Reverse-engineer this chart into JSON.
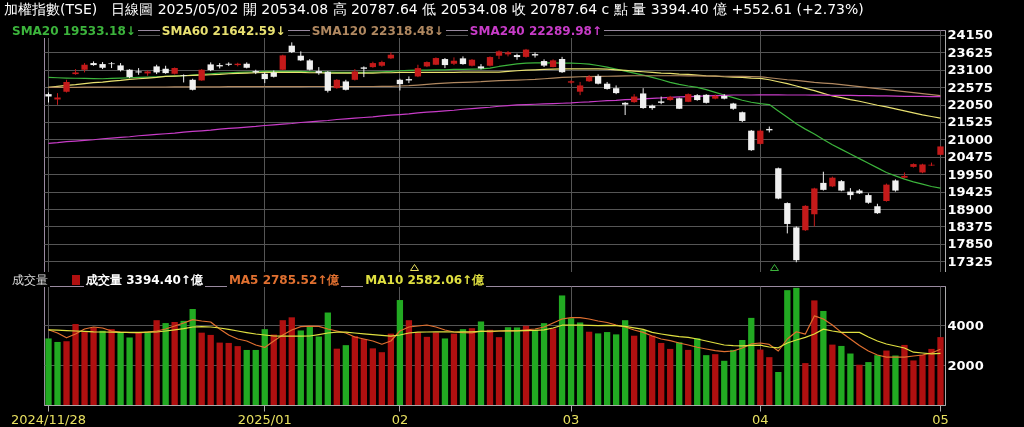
{
  "chart_data": [
    {
      "type": "candlestick",
      "title": "加權指數(TSE)",
      "subtitle": "日線圖  2025/05/02  開 20534.08  高 20787.64  低 20534.08  收 20787.64  c 點  量 3394.40 億  +552.61 (+2.73%)",
      "categories": [
        "2024/11/28",
        null,
        null,
        null,
        null,
        null,
        null,
        null,
        null,
        null,
        null,
        null,
        null,
        null,
        null,
        null,
        null,
        null,
        null,
        null,
        null,
        null,
        null,
        null,
        "2025/01",
        null,
        null,
        null,
        null,
        null,
        null,
        null,
        null,
        null,
        null,
        null,
        null,
        null,
        null,
        "02",
        null,
        null,
        null,
        null,
        null,
        null,
        null,
        null,
        null,
        null,
        null,
        null,
        null,
        null,
        null,
        null,
        null,
        null,
        "03",
        null,
        null,
        null,
        null,
        null,
        null,
        null,
        null,
        null,
        null,
        null,
        null,
        null,
        null,
        null,
        null,
        null,
        null,
        null,
        null,
        "04",
        null,
        null,
        null,
        null,
        null,
        null,
        null,
        null,
        null,
        null,
        null,
        null,
        null,
        null,
        null,
        null,
        null,
        null,
        null,
        "05"
      ],
      "ohlc": [
        [
          22365,
          22415,
          22113,
          22294
        ],
        [
          22204,
          22395,
          22043,
          22264
        ],
        [
          22436,
          22798,
          22415,
          22728
        ],
        [
          22970,
          23121,
          22950,
          23020
        ],
        [
          23101,
          23302,
          23020,
          23252
        ],
        [
          23302,
          23353,
          23222,
          23242
        ],
        [
          23272,
          23333,
          23121,
          23161
        ],
        [
          23292,
          23333,
          23151,
          23272
        ],
        [
          23232,
          23302,
          23050,
          23091
        ],
        [
          23101,
          23121,
          22849,
          22879
        ],
        [
          23050,
          23151,
          22950,
          23020
        ],
        [
          22990,
          23081,
          22919,
          23050
        ],
        [
          23202,
          23252,
          22970,
          23020
        ],
        [
          23131,
          23222,
          22980,
          23000
        ],
        [
          22980,
          23171,
          22960,
          23151
        ],
        [
          22940,
          22960,
          22718,
          22919
        ],
        [
          22798,
          22829,
          22476,
          22496
        ],
        [
          22778,
          23121,
          22768,
          23101
        ],
        [
          23262,
          23323,
          23060,
          23091
        ],
        [
          23242,
          23302,
          23141,
          23202
        ],
        [
          23282,
          23323,
          23212,
          23252
        ],
        [
          23242,
          23313,
          23202,
          23282
        ],
        [
          23282,
          23323,
          23141,
          23161
        ],
        [
          23060,
          23101,
          22970,
          23020
        ],
        [
          22980,
          23020,
          22698,
          22819
        ],
        [
          23020,
          23081,
          22869,
          22889
        ],
        [
          23101,
          23554,
          23091,
          23534
        ],
        [
          23827,
          23927,
          23605,
          23635
        ],
        [
          23524,
          23655,
          23363,
          23383
        ],
        [
          23383,
          23423,
          23081,
          23101
        ],
        [
          23060,
          23181,
          22950,
          23000
        ],
        [
          23040,
          23060,
          22415,
          22466
        ],
        [
          22546,
          22819,
          22526,
          22798
        ],
        [
          22748,
          22798,
          22476,
          22496
        ],
        [
          22798,
          23121,
          22778,
          23050
        ],
        [
          23171,
          23202,
          22879,
          23131
        ],
        [
          23181,
          23343,
          23161,
          23302
        ],
        [
          23222,
          23373,
          23192,
          23333
        ],
        [
          23444,
          23625,
          23423,
          23554
        ],
        [
          22798,
          22829,
          22476,
          22667
        ],
        [
          22819,
          22899,
          22698,
          22778
        ],
        [
          22899,
          23252,
          22879,
          23151
        ],
        [
          23202,
          23353,
          23181,
          23333
        ],
        [
          23252,
          23474,
          23242,
          23454
        ],
        [
          23423,
          23454,
          23151,
          23242
        ],
        [
          23282,
          23474,
          23242,
          23373
        ],
        [
          23444,
          23504,
          23252,
          23272
        ],
        [
          23222,
          23423,
          23202,
          23403
        ],
        [
          23202,
          23272,
          23111,
          23141
        ],
        [
          23222,
          23504,
          23202,
          23484
        ],
        [
          23524,
          23685,
          23423,
          23655
        ],
        [
          23565,
          23665,
          23504,
          23625
        ],
        [
          23544,
          23585,
          23403,
          23484
        ],
        [
          23489,
          23730,
          23468,
          23709
        ],
        [
          23573,
          23625,
          23468,
          23531
        ],
        [
          23363,
          23415,
          23184,
          23226
        ],
        [
          23184,
          23415,
          23174,
          23384
        ],
        [
          23426,
          23489,
          23006,
          23027
        ],
        [
          22712,
          22785,
          22680,
          22754
        ],
        [
          22439,
          22733,
          22334,
          22628
        ],
        [
          22754,
          22943,
          22733,
          22890
        ],
        [
          22911,
          22964,
          22659,
          22680
        ],
        [
          22680,
          22733,
          22502,
          22523
        ],
        [
          22544,
          22628,
          22365,
          22397
        ],
        [
          22103,
          22124,
          21735,
          22050
        ],
        [
          22124,
          22365,
          22103,
          22292
        ],
        [
          22386,
          22544,
          21924,
          21945
        ],
        [
          22019,
          22050,
          21893,
          21945
        ],
        [
          22145,
          22292,
          22061,
          22103
        ],
        [
          22187,
          22313,
          22166,
          22281
        ],
        [
          22239,
          22260,
          21914,
          21924
        ],
        [
          22134,
          22386,
          22124,
          22365
        ],
        [
          22334,
          22365,
          22166,
          22187
        ],
        [
          22344,
          22365,
          22082,
          22103
        ],
        [
          22229,
          22355,
          22208,
          22313
        ],
        [
          22313,
          22365,
          22208,
          22229
        ],
        [
          22082,
          22103,
          21893,
          21924
        ],
        [
          21819,
          21840,
          21525,
          21557
        ],
        [
          21263,
          21284,
          20654,
          20675
        ],
        [
          20864,
          21294,
          20843,
          21263
        ],
        [
          21315,
          21389,
          21210,
          21273
        ],
        [
          20129,
          20150,
          19194,
          19215
        ],
        [
          19079,
          19100,
          18165,
          18449
        ],
        [
          18344,
          18375,
          17294,
          17357
        ],
        [
          18260,
          19016,
          18239,
          18995
        ],
        [
          18742,
          19541,
          18375,
          19520
        ],
        [
          19688,
          20024,
          19457,
          19478
        ],
        [
          19583,
          19877,
          19562,
          19845
        ],
        [
          19740,
          19772,
          19436,
          19457
        ],
        [
          19425,
          19530,
          19184,
          19320
        ],
        [
          19457,
          19499,
          19352,
          19373
        ],
        [
          19320,
          19373,
          19058,
          19089
        ],
        [
          18984,
          19058,
          18753,
          18774
        ],
        [
          19142,
          19667,
          19121,
          19635
        ],
        [
          19761,
          19793,
          19425,
          19457
        ],
        [
          19845,
          20003,
          19824,
          19898
        ],
        [
          20171,
          20276,
          20150,
          20255
        ],
        [
          20003,
          20265,
          19980,
          20244
        ],
        [
          20213,
          20300,
          20200,
          20235
        ],
        [
          20534.08,
          20787.64,
          20534.08,
          20787.64
        ]
      ],
      "colors": [
        "#f0f0f0",
        "#c41a1a",
        "#c41a1a",
        "#c41a1a",
        "#c41a1a",
        "#f0f0f0",
        "#f0f0f0",
        "#f0f0f0",
        "#f0f0f0",
        "#f0f0f0",
        "#f0f0f0",
        "#c41a1a",
        "#f0f0f0",
        "#f0f0f0",
        "#c41a1a",
        "#f0f0f0",
        "#f0f0f0",
        "#c41a1a",
        "#f0f0f0",
        "#f0f0f0",
        "#f0f0f0",
        "#c41a1a",
        "#f0f0f0",
        "#f0f0f0",
        "#f0f0f0",
        "#f0f0f0",
        "#c41a1a",
        "#f0f0f0",
        "#f0f0f0",
        "#f0f0f0",
        "#f0f0f0",
        "#f0f0f0",
        "#c41a1a",
        "#f0f0f0",
        "#c41a1a",
        "#f0f0f0",
        "#c41a1a",
        "#c41a1a",
        "#c41a1a",
        "#f0f0f0",
        "#f0f0f0",
        "#c41a1a",
        "#c41a1a",
        "#c41a1a",
        "#f0f0f0",
        "#c41a1a",
        "#f0f0f0",
        "#c41a1a",
        "#f0f0f0",
        "#c41a1a",
        "#c41a1a",
        "#c41a1a",
        "#f0f0f0",
        "#c41a1a",
        "#f0f0f0",
        "#f0f0f0",
        "#c41a1a",
        "#f0f0f0",
        "#c41a1a",
        "#c41a1a",
        "#c41a1a",
        "#f0f0f0",
        "#f0f0f0",
        "#f0f0f0",
        "#f0f0f0",
        "#c41a1a",
        "#f0f0f0",
        "#f0f0f0",
        "#f0f0f0",
        "#c41a1a",
        "#f0f0f0",
        "#c41a1a",
        "#f0f0f0",
        "#f0f0f0",
        "#c41a1a",
        "#f0f0f0",
        "#f0f0f0",
        "#f0f0f0",
        "#f0f0f0",
        "#c41a1a",
        "#f0f0f0",
        "#f0f0f0",
        "#f0f0f0",
        "#f0f0f0",
        "#c41a1a",
        "#c41a1a",
        "#f0f0f0",
        "#c41a1a",
        "#f0f0f0",
        "#f0f0f0",
        "#f0f0f0",
        "#f0f0f0",
        "#f0f0f0",
        "#c41a1a",
        "#f0f0f0",
        "#c41a1a",
        "#c41a1a",
        "#c41a1a",
        "#c41a1a",
        "#c41a1a"
      ],
      "series": [
        {
          "type": "line",
          "name": "SMA20 19533.18↓",
          "color": "#3cb43c",
          "values": [
            22870,
            22860,
            22850,
            22845,
            22840,
            22835,
            22830,
            22840,
            22850,
            22860,
            22870,
            22880,
            22890,
            22900,
            22910,
            22920,
            22940,
            22960,
            22980,
            23000,
            23010,
            23020,
            23030,
            23040,
            23050,
            23050,
            23050,
            23050,
            23050,
            23040,
            23030,
            23030,
            23020,
            23020,
            23020,
            23020,
            23030,
            23040,
            23050,
            23070,
            23080,
            23090,
            23090,
            23100,
            23100,
            23110,
            23110,
            23120,
            23130,
            23150,
            23200,
            23240,
            23280,
            23300,
            23310,
            23310,
            23310,
            23300,
            23300,
            23290,
            23270,
            23230,
            23180,
            23120,
            23060,
            23000,
            22940,
            22870,
            22800,
            22720,
            22660,
            22610,
            22570,
            22500,
            22420,
            22340,
            22260,
            22180,
            22120,
            22080,
            22050,
            21860,
            21670,
            21470,
            21310,
            21160,
            21000,
            20840,
            20700,
            20560,
            20420,
            20280,
            20140,
            20000,
            19900,
            19800,
            19720,
            19650,
            19580,
            19530
          ]
        },
        {
          "type": "line",
          "name": "SMA60 21642.59↓",
          "color": "#e8e070",
          "values": [
            22570,
            22600,
            22630,
            22650,
            22680,
            22710,
            22730,
            22760,
            22780,
            22810,
            22830,
            22850,
            22870,
            22900,
            22910,
            22920,
            22930,
            22940,
            22950,
            22960,
            22980,
            22990,
            23000,
            23010,
            23020,
            23020,
            23020,
            23020,
            23020,
            23010,
            23010,
            23000,
            23000,
            23000,
            23000,
            23000,
            23000,
            23010,
            23010,
            23020,
            23020,
            23020,
            23020,
            23020,
            23020,
            23020,
            23030,
            23030,
            23030,
            23030,
            23030,
            23050,
            23070,
            23090,
            23100,
            23110,
            23120,
            23130,
            23130,
            23130,
            23130,
            23130,
            23120,
            23100,
            23080,
            23060,
            23040,
            23020,
            23000,
            22990,
            22970,
            22960,
            22940,
            22920,
            22910,
            22890,
            22880,
            22870,
            22850,
            22840,
            22800,
            22740,
            22680,
            22610,
            22540,
            22470,
            22390,
            22310,
            22260,
            22200,
            22150,
            22090,
            22030,
            21980,
            21920,
            21860,
            21800,
            21740,
            21690,
            21640
          ]
        },
        {
          "type": "line",
          "name": "SMA120 22318.48↓",
          "color": "#b08860",
          "values": [
            22570,
            22570,
            22570,
            22570,
            22575,
            22575,
            22575,
            22575,
            22580,
            22580,
            22580,
            22580,
            22580,
            22580,
            22585,
            22585,
            22585,
            22585,
            22585,
            22585,
            22590,
            22590,
            22590,
            22590,
            22590,
            22590,
            22590,
            22590,
            22590,
            22595,
            22595,
            22595,
            22595,
            22595,
            22595,
            22595,
            22595,
            22600,
            22600,
            22610,
            22620,
            22640,
            22660,
            22680,
            22700,
            22710,
            22720,
            22730,
            22740,
            22760,
            22770,
            22780,
            22790,
            22800,
            22810,
            22830,
            22850,
            22870,
            22880,
            22890,
            22895,
            22900,
            22905,
            22910,
            22915,
            22920,
            22920,
            22920,
            22920,
            22920,
            22920,
            22915,
            22915,
            22910,
            22910,
            22905,
            22900,
            22900,
            22895,
            22890,
            22860,
            22830,
            22800,
            22780,
            22750,
            22720,
            22700,
            22680,
            22650,
            22620,
            22590,
            22560,
            22530,
            22500,
            22470,
            22440,
            22410,
            22380,
            22350,
            22320
          ]
        },
        {
          "type": "line",
          "name": "SMA240 22289.98↑",
          "color": "#c83cc8",
          "values": [
            20880,
            20900,
            20930,
            20950,
            20970,
            20990,
            21020,
            21040,
            21060,
            21080,
            21110,
            21130,
            21150,
            21170,
            21190,
            21220,
            21240,
            21260,
            21280,
            21310,
            21330,
            21350,
            21370,
            21390,
            21420,
            21440,
            21460,
            21480,
            21510,
            21530,
            21550,
            21570,
            21600,
            21620,
            21640,
            21660,
            21680,
            21710,
            21730,
            21750,
            21770,
            21800,
            21820,
            21840,
            21860,
            21880,
            21910,
            21930,
            21950,
            21970,
            22000,
            22020,
            22040,
            22050,
            22060,
            22070,
            22080,
            22090,
            22100,
            22120,
            22130,
            22150,
            22170,
            22180,
            22200,
            22210,
            22220,
            22240,
            22250,
            22270,
            22280,
            22290,
            22300,
            22310,
            22320,
            22330,
            22340,
            22340,
            22340,
            22345,
            22345,
            22345,
            22340,
            22340,
            22340,
            22335,
            22335,
            22330,
            22330,
            22325,
            22320,
            22320,
            22315,
            22310,
            22305,
            22300,
            22300,
            22295,
            22290,
            22290
          ]
        }
      ],
      "ylim": [
        17000,
        24300
      ],
      "yticks": [
        17325,
        17850,
        18375,
        18900,
        19425,
        19950,
        20475,
        21000,
        21525,
        22050,
        22575,
        23100,
        23625,
        24150
      ],
      "grid": true,
      "legend": "top left",
      "tick_labels": "y"
    },
    {
      "type": "bar",
      "title": "成交量",
      "categories": [
        "2024/11/28",
        null,
        null,
        null,
        null,
        null,
        null,
        null,
        null,
        null,
        null,
        null,
        null,
        null,
        null,
        null,
        null,
        null,
        null,
        null,
        null,
        null,
        null,
        null,
        "2025/01",
        null,
        null,
        null,
        null,
        null,
        null,
        null,
        null,
        null,
        null,
        null,
        null,
        null,
        null,
        "02",
        null,
        null,
        null,
        null,
        null,
        null,
        null,
        null,
        null,
        null,
        null,
        null,
        null,
        null,
        null,
        null,
        null,
        null,
        "03",
        null,
        null,
        null,
        null,
        null,
        null,
        null,
        null,
        null,
        null,
        null,
        null,
        null,
        null,
        null,
        null,
        null,
        null,
        null,
        null,
        "04",
        null,
        null,
        null,
        null,
        null,
        null,
        null,
        null,
        null,
        null,
        null,
        null,
        null,
        null,
        null,
        null,
        null,
        null,
        null,
        "05"
      ],
      "series": [
        {
          "name": "成交量 3394.40↑億",
          "colors": [
            "#22aa22",
            "#22aa22",
            "#b01010",
            "#b01010",
            "#b01010",
            "#b01010",
            "#22aa22",
            "#b01010",
            "#22aa22",
            "#22aa22",
            "#b01010",
            "#22aa22",
            "#b01010",
            "#22aa22",
            "#b01010",
            "#22aa22",
            "#22aa22",
            "#b01010",
            "#b01010",
            "#b01010",
            "#b01010",
            "#b01010",
            "#22aa22",
            "#22aa22",
            "#22aa22",
            "#b01010",
            "#b01010",
            "#b01010",
            "#22aa22",
            "#22aa22",
            "#22aa22",
            "#22aa22",
            "#b01010",
            "#22aa22",
            "#b01010",
            "#b01010",
            "#b01010",
            "#b01010",
            "#b01010",
            "#22aa22",
            "#b01010",
            "#b01010",
            "#b01010",
            "#b01010",
            "#22aa22",
            "#b01010",
            "#22aa22",
            "#b01010",
            "#22aa22",
            "#b01010",
            "#b01010",
            "#22aa22",
            "#22aa22",
            "#b01010",
            "#22aa22",
            "#22aa22",
            "#b01010",
            "#22aa22",
            "#22aa22",
            "#22aa22",
            "#b01010",
            "#22aa22",
            "#22aa22",
            "#22aa22",
            "#22aa22",
            "#b01010",
            "#22aa22",
            "#b01010",
            "#b01010",
            "#b01010",
            "#22aa22",
            "#b01010",
            "#22aa22",
            "#22aa22",
            "#b01010",
            "#22aa22",
            "#22aa22",
            "#22aa22",
            "#22aa22",
            "#b01010",
            "#b01010",
            "#22aa22",
            "#22aa22",
            "#22aa22",
            "#b01010",
            "#b01010",
            "#22aa22",
            "#b01010",
            "#22aa22",
            "#22aa22",
            "#b01010",
            "#22aa22",
            "#22aa22",
            "#b01010",
            "#22aa22",
            "#b01010",
            "#b01010",
            "#b01010",
            "#b01010",
            "#b01010"
          ],
          "values": [
            3328,
            3152,
            3184,
            4048,
            3648,
            3872,
            3712,
            3792,
            3600,
            3376,
            3600,
            3600,
            4240,
            4096,
            4144,
            4208,
            4800,
            3616,
            3504,
            3120,
            3104,
            2944,
            2752,
            2752,
            3792,
            3520,
            4240,
            4384,
            3728,
            3936,
            3424,
            4624,
            2816,
            2992,
            3440,
            3296,
            2832,
            2640,
            3568,
            5248,
            4240,
            3632,
            3408,
            3632,
            3328,
            3568,
            3792,
            3840,
            4176,
            3760,
            3392,
            3888,
            3878,
            3960,
            3762,
            4092,
            3828,
            5478,
            4340,
            4125,
            3663,
            3580,
            3647,
            3531,
            4240,
            3465,
            3746,
            3465,
            3102,
            2805,
            3135,
            2755,
            3333,
            2492,
            2541,
            2211,
            2755,
            3250,
            4356,
            2772,
            2392,
            1650,
            5742,
            5857,
            2095,
            5230,
            4702,
            3019,
            2953,
            2574,
            2013,
            2145,
            2491,
            2722,
            2475,
            3003,
            2227,
            2508,
            2805,
            3394.4
          ]
        },
        {
          "type": "line",
          "name": "MA5 2785.52↑億",
          "color": "#e07030",
          "values": [
            3760,
            3600,
            3360,
            3550,
            3800,
            3900,
            3850,
            3700,
            3650,
            3620,
            3600,
            3640,
            3700,
            3800,
            3950,
            4100,
            4270,
            4200,
            4150,
            3800,
            3500,
            3300,
            3200,
            3000,
            2880,
            3200,
            3500,
            3750,
            3920,
            3940,
            3930,
            3800,
            3700,
            3600,
            3400,
            3300,
            3200,
            3040,
            3200,
            3700,
            3900,
            3950,
            4000,
            3900,
            3750,
            3650,
            3620,
            3600,
            3700,
            3650,
            3700,
            3710,
            3712,
            3760,
            3800,
            3900,
            4100,
            4300,
            4370,
            4372,
            4300,
            4200,
            4125,
            4000,
            3900,
            3750,
            3630,
            3450,
            3300,
            3217,
            3100,
            3000,
            2887,
            2800,
            2720,
            2673,
            2700,
            2850,
            3052,
            3100,
            3030,
            2700,
            3300,
            3663,
            3547,
            4455,
            4300,
            4000,
            3630,
            3300,
            2970,
            2700,
            2500,
            2392,
            2390,
            2390,
            2450,
            2500,
            2600,
            2785.52
          ]
        },
        {
          "type": "line",
          "name": "MA10 2582.06↑億",
          "color": "#e0e040",
          "values": [
            3760,
            3740,
            3720,
            3700,
            3680,
            3660,
            3650,
            3640,
            3630,
            3630,
            3630,
            3640,
            3650,
            3700,
            3760,
            3820,
            3900,
            3920,
            3900,
            3850,
            3780,
            3700,
            3620,
            3550,
            3500,
            3450,
            3440,
            3440,
            3440,
            3450,
            3520,
            3600,
            3640,
            3640,
            3600,
            3560,
            3520,
            3480,
            3440,
            3500,
            3600,
            3640,
            3650,
            3660,
            3660,
            3650,
            3660,
            3660,
            3680,
            3690,
            3700,
            3710,
            3710,
            3720,
            3730,
            3760,
            3850,
            3990,
            4000,
            3990,
            3980,
            3970,
            3980,
            3970,
            3930,
            3860,
            3780,
            3630,
            3550,
            3480,
            3420,
            3380,
            3300,
            3200,
            3100,
            3000,
            2970,
            2960,
            2980,
            2990,
            2900,
            2860,
            3100,
            3250,
            3380,
            3550,
            3795,
            3700,
            3630,
            3630,
            3630,
            3400,
            3200,
            3050,
            2950,
            2850,
            2640,
            2600,
            2557,
            2582.06
          ]
        }
      ],
      "ylim": [
        0,
        5950
      ],
      "yticks": [
        2000,
        4000
      ],
      "grid": true,
      "legend": "top left"
    }
  ]
}
